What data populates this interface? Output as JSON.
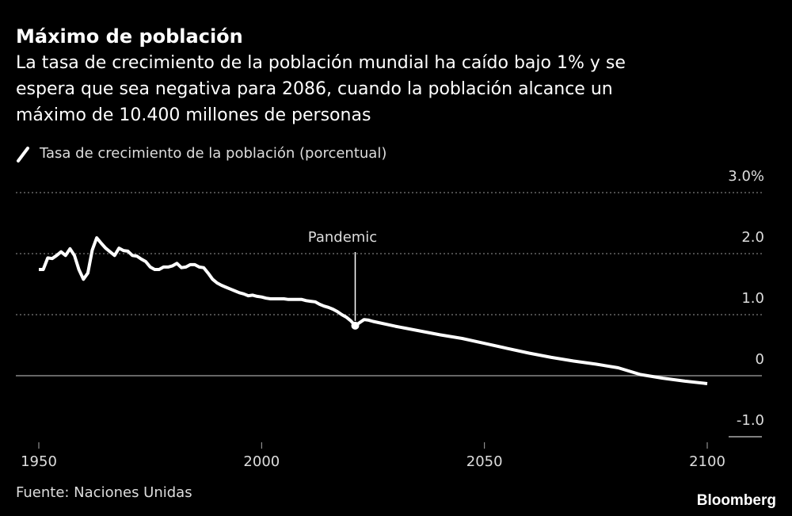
{
  "chart_data": {
    "type": "line",
    "title": "Máximo de población",
    "subtitle": [
      "La tasa de crecimiento de la población mundial ha caído bajo 1% y se",
      "espera que sea negativa para 2086, cuando la población alcance un",
      "máximo de 10.400 millones de personas"
    ],
    "x": [
      1950,
      1951,
      1952,
      1953,
      1954,
      1955,
      1956,
      1957,
      1958,
      1959,
      1960,
      1961,
      1962,
      1963,
      1964,
      1965,
      1966,
      1967,
      1968,
      1969,
      1970,
      1971,
      1972,
      1973,
      1974,
      1975,
      1976,
      1977,
      1978,
      1979,
      1980,
      1981,
      1982,
      1983,
      1984,
      1985,
      1986,
      1987,
      1988,
      1989,
      1990,
      1991,
      1992,
      1993,
      1994,
      1995,
      1996,
      1997,
      1998,
      1999,
      2000,
      2001,
      2002,
      2003,
      2004,
      2005,
      2006,
      2007,
      2008,
      2009,
      2010,
      2011,
      2012,
      2013,
      2014,
      2015,
      2016,
      2017,
      2018,
      2019,
      2020,
      2021,
      2022,
      2023,
      2024,
      2025,
      2030,
      2035,
      2040,
      2045,
      2050,
      2055,
      2060,
      2065,
      2070,
      2075,
      2080,
      2085,
      2090,
      2095,
      2100
    ],
    "series": [
      {
        "name": "Tasa de crecimiento de la población (porcentual)",
        "color": "#ffffff",
        "values": [
          1.74,
          1.74,
          1.93,
          1.92,
          1.97,
          2.03,
          1.97,
          2.08,
          1.97,
          1.74,
          1.58,
          1.68,
          2.06,
          2.26,
          2.17,
          2.09,
          2.03,
          1.97,
          2.09,
          2.05,
          2.04,
          1.97,
          1.96,
          1.91,
          1.87,
          1.78,
          1.74,
          1.74,
          1.78,
          1.78,
          1.8,
          1.84,
          1.77,
          1.78,
          1.82,
          1.82,
          1.78,
          1.77,
          1.68,
          1.58,
          1.52,
          1.48,
          1.45,
          1.42,
          1.39,
          1.36,
          1.34,
          1.31,
          1.32,
          1.3,
          1.29,
          1.27,
          1.26,
          1.26,
          1.26,
          1.26,
          1.25,
          1.25,
          1.25,
          1.25,
          1.23,
          1.22,
          1.21,
          1.17,
          1.14,
          1.12,
          1.09,
          1.05,
          1.0,
          0.96,
          0.9,
          0.82,
          0.87,
          0.92,
          0.91,
          0.89,
          0.81,
          0.74,
          0.67,
          0.61,
          0.53,
          0.45,
          0.37,
          0.3,
          0.24,
          0.19,
          0.13,
          0.02,
          -0.04,
          -0.09,
          -0.13
        ]
      }
    ],
    "xlim": [
      1950,
      2100
    ],
    "xticks": [
      1950,
      2000,
      2050,
      2100
    ],
    "ylim": [
      -1,
      3
    ],
    "yticks": [
      {
        "value": 3,
        "label": "3.0%"
      },
      {
        "value": 2,
        "label": "2.0"
      },
      {
        "value": 1,
        "label": "1.0"
      },
      0,
      {
        "value": -1,
        "label": "-1.0"
      }
    ],
    "grid": true,
    "annotations": [
      {
        "text": "Pandemic",
        "x": 2021
      }
    ],
    "source": "Fuente: Naciones Unidas",
    "brand": "Bloomberg"
  }
}
